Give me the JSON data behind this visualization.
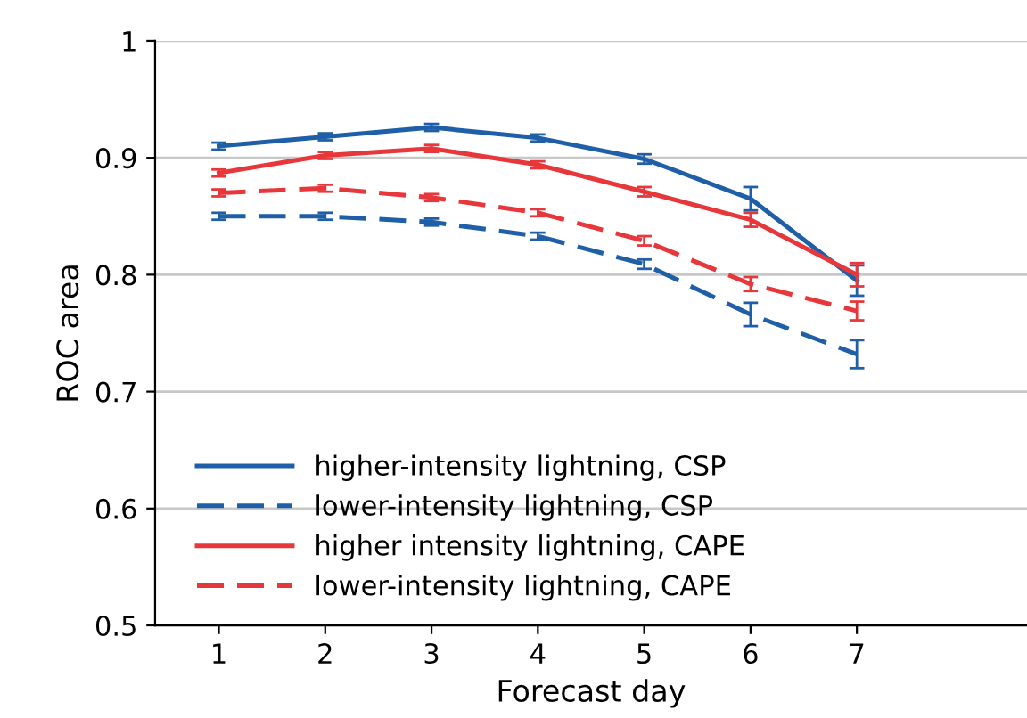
{
  "chart_data": {
    "type": "line",
    "xlabel": "Forecast day",
    "ylabel": "ROC area",
    "x": [
      1,
      2,
      3,
      4,
      5,
      6,
      7
    ],
    "xlim": [
      0.4,
      8.6
    ],
    "xticks": [
      1,
      2,
      3,
      4,
      5,
      6,
      7
    ],
    "ylim": [
      0.5,
      1
    ],
    "yticks": [
      0.5,
      0.6,
      0.7,
      0.8,
      0.9,
      1
    ],
    "grid": "y",
    "legend": "bottom left",
    "series": [
      {
        "name": "higher-intensity lightning, CSP",
        "color": "#1f5fa8",
        "line_style": "solid",
        "values": [
          0.91,
          0.918,
          0.926,
          0.917,
          0.899,
          0.865,
          0.795
        ],
        "errors": [
          0.003,
          0.003,
          0.003,
          0.003,
          0.004,
          0.01,
          0.013
        ]
      },
      {
        "name": "lower-intensity lightning, CSP",
        "color": "#1f5fa8",
        "line_style": "dashed",
        "values": [
          0.85,
          0.85,
          0.845,
          0.833,
          0.809,
          0.766,
          0.732
        ],
        "errors": [
          0.003,
          0.003,
          0.003,
          0.003,
          0.004,
          0.01,
          0.012
        ]
      },
      {
        "name": "higher intensity lightning, CAPE",
        "color": "#e8373a",
        "line_style": "solid",
        "values": [
          0.887,
          0.902,
          0.908,
          0.894,
          0.871,
          0.847,
          0.8
        ],
        "errors": [
          0.003,
          0.003,
          0.003,
          0.003,
          0.004,
          0.006,
          0.01
        ]
      },
      {
        "name": "lower-intensity lightning, CAPE",
        "color": "#e8373a",
        "line_style": "dashed",
        "values": [
          0.87,
          0.874,
          0.866,
          0.853,
          0.829,
          0.792,
          0.769
        ],
        "errors": [
          0.003,
          0.003,
          0.003,
          0.003,
          0.004,
          0.006,
          0.008
        ]
      }
    ]
  }
}
